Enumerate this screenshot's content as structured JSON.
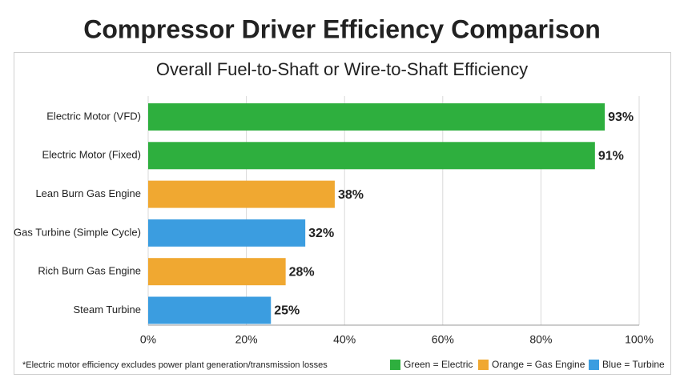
{
  "chart_data": {
    "type": "hbar",
    "title": "Compressor Driver Efficiency Comparison",
    "subtitle": "Overall Fuel-to-Shaft or Wire-to-Shaft Efficiency",
    "categories": [
      "Electric Motor (VFD)",
      "Electric Motor (Fixed)",
      "Lean Burn Gas Engine",
      "Gas Turbine (Simple Cycle)",
      "Rich Burn Gas Engine",
      "Steam Turbine"
    ],
    "values": [
      93,
      91,
      38,
      32,
      28,
      25
    ],
    "value_labels": [
      "93%",
      "91%",
      "38%",
      "32%",
      "28%",
      "25%"
    ],
    "colors": [
      "#2eaf3e",
      "#2eaf3e",
      "#f0a831",
      "#3b9de0",
      "#f0a831",
      "#3b9de0"
    ],
    "xlim": [
      0,
      100
    ],
    "xticks": [
      {
        "value": 0,
        "label": "0%"
      },
      {
        "value": 20,
        "label": "20%"
      },
      {
        "value": 40,
        "label": "40%"
      },
      {
        "value": 60,
        "label": "60%"
      },
      {
        "value": 80,
        "label": "80%"
      },
      {
        "value": 100,
        "label": "100%"
      }
    ],
    "grid": true,
    "legend": [
      {
        "label": "Green = Electric",
        "color": "#2eaf3e"
      },
      {
        "label": "Orange = Gas Engine",
        "color": "#f0a831"
      },
      {
        "label": "Blue = Turbine",
        "color": "#3b9de0"
      }
    ],
    "footnote": "*Electric motor efficiency excludes power plant generation/transmission losses"
  }
}
